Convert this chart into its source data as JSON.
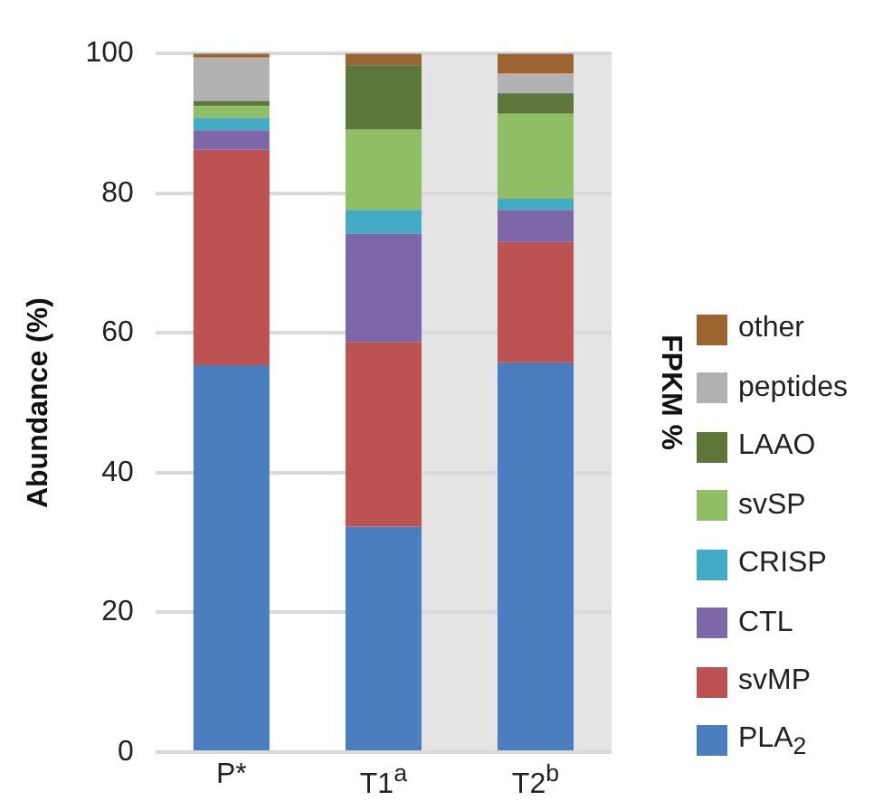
{
  "chart_data": {
    "type": "bar",
    "stacked": true,
    "ylabel": "Abundance (%)",
    "legend_title": "FPKM %",
    "legend": "right",
    "categories": [
      "P*",
      "T1$^{a}$",
      "T2$^{b}$"
    ],
    "ylim": [
      0,
      100
    ],
    "yticks": [
      0,
      20,
      40,
      60,
      80,
      100
    ],
    "grid": "y",
    "series": [
      {
        "name": "PLA$_{2}$",
        "color": "#4a7ebf",
        "values": [
          55.5,
          32.3,
          55.8
        ]
      },
      {
        "name": "svMP",
        "color": "#bd5252",
        "values": [
          30.7,
          26.4,
          17.2
        ]
      },
      {
        "name": "CTL",
        "color": "#7e67a8",
        "values": [
          2.8,
          15.5,
          4.6
        ]
      },
      {
        "name": "CRISP",
        "color": "#44abc7",
        "values": [
          1.8,
          3.4,
          1.7
        ]
      },
      {
        "name": "svSP",
        "color": "#90be66",
        "values": [
          1.7,
          11.5,
          12.1
        ]
      },
      {
        "name": "LAAO",
        "color": "#5d763a",
        "values": [
          0.7,
          9.2,
          2.9
        ]
      },
      {
        "name": "peptides",
        "color": "#b1b1b1",
        "values": [
          6.2,
          0,
          2.8
        ]
      },
      {
        "name": "other",
        "color": "#9c6431",
        "values": [
          0.6,
          1.7,
          2.9
        ]
      }
    ]
  }
}
